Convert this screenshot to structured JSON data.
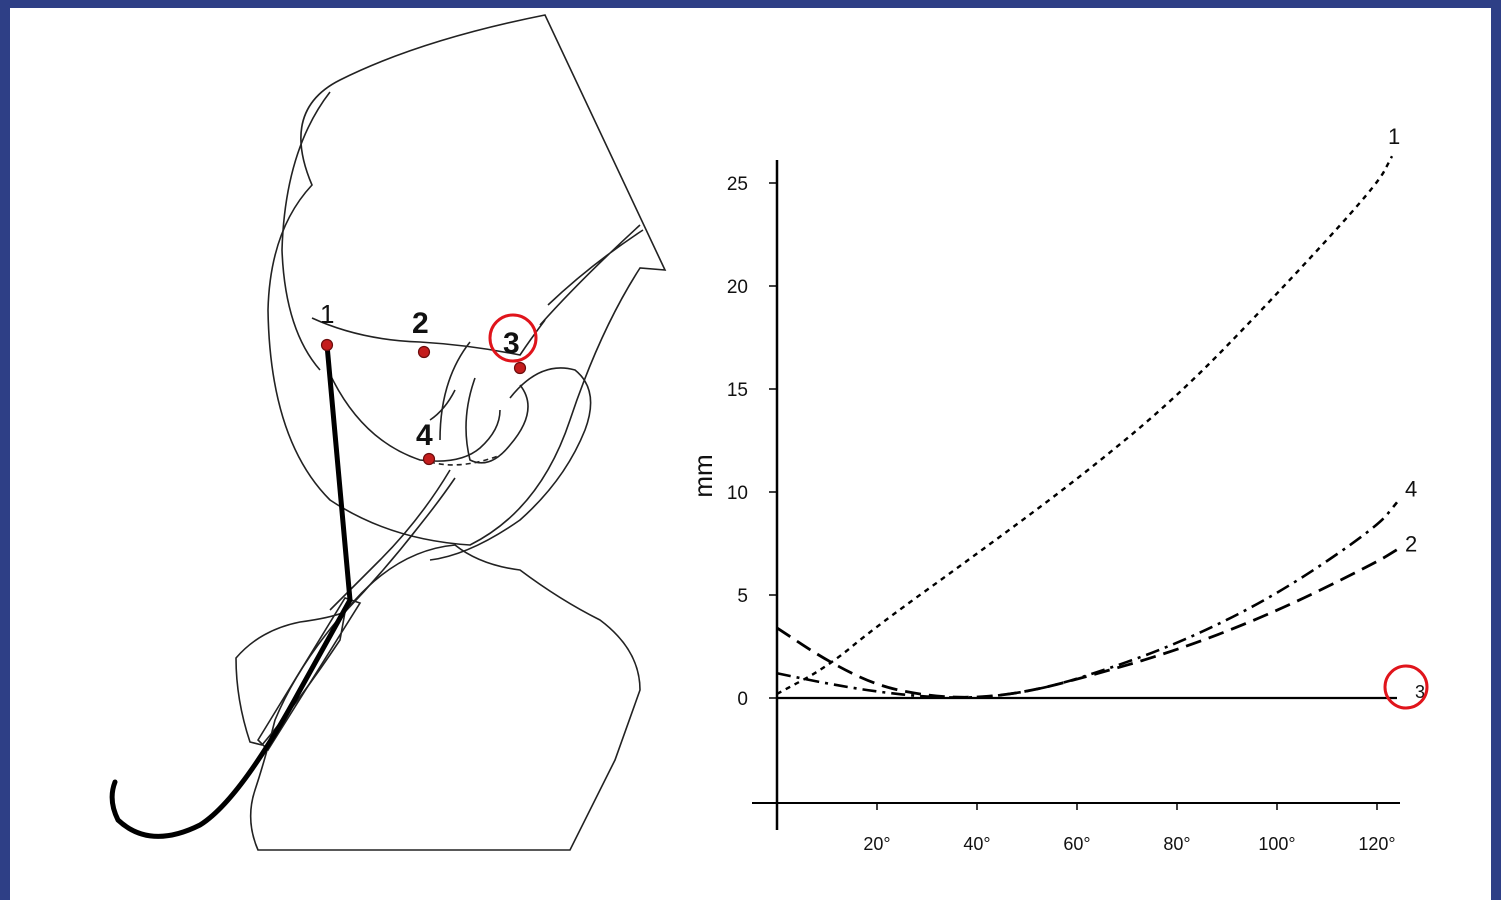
{
  "diagram": {
    "point_labels": [
      "1",
      "2",
      "3",
      "4"
    ],
    "highlighted_point": "3",
    "highlight_color": "#e0141b",
    "point_color": "#c41d1d"
  },
  "chart_data": {
    "type": "line",
    "ylabel": "mm",
    "xlabel": "",
    "x_ticks": [
      "20°",
      "40°",
      "60°",
      "80°",
      "100°",
      "120°"
    ],
    "y_ticks": [
      "0",
      "5",
      "10",
      "15",
      "20",
      "25"
    ],
    "xlim": [
      0,
      125
    ],
    "ylim": [
      -5,
      26
    ],
    "grid": false,
    "series": [
      {
        "name": "1",
        "style": "short-dash",
        "x": [
          0,
          10,
          20,
          40,
          60,
          80,
          100,
          120,
          123
        ],
        "y": [
          0.2,
          1.5,
          3.5,
          7.0,
          10.6,
          14.6,
          19.6,
          24.9,
          26.3
        ]
      },
      {
        "name": "4",
        "style": "dash-dot",
        "x": [
          0,
          10,
          20,
          30,
          40,
          50,
          60,
          80,
          100,
          120,
          124
        ],
        "y": [
          1.2,
          0.7,
          0.3,
          0.05,
          0.0,
          0.3,
          0.9,
          2.6,
          5.0,
          8.3,
          9.5
        ]
      },
      {
        "name": "2",
        "style": "long-dash",
        "x": [
          0,
          10,
          20,
          30,
          40,
          50,
          60,
          80,
          100,
          120,
          124
        ],
        "y": [
          3.4,
          1.8,
          0.6,
          0.1,
          0.0,
          0.3,
          0.9,
          2.3,
          4.2,
          6.6,
          7.2
        ]
      },
      {
        "name": "3",
        "style": "solid",
        "x": [
          0,
          124
        ],
        "y": [
          0,
          0
        ]
      }
    ]
  }
}
